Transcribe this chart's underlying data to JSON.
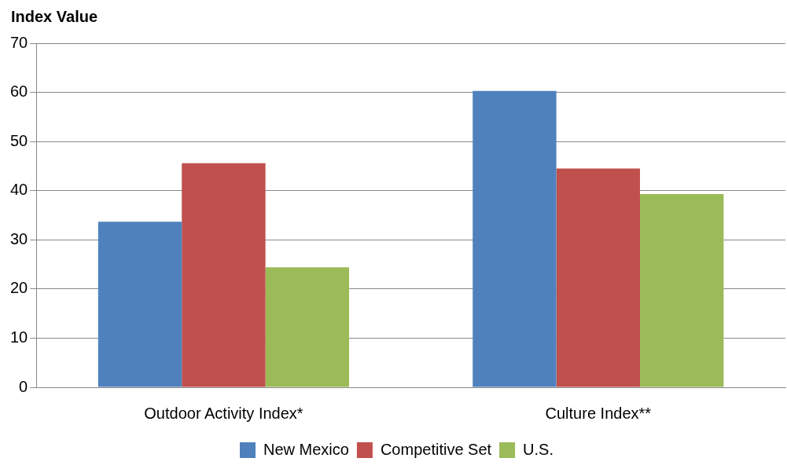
{
  "chart_data": {
    "type": "bar",
    "ylabel": "Index Value",
    "categories": [
      "Outdoor Activity Index*",
      "Culture Index**"
    ],
    "series": [
      {
        "name": "New Mexico",
        "color": "#4f81bd",
        "values": [
          33.7,
          60.3
        ]
      },
      {
        "name": "Competitive Set",
        "color": "#c0504d",
        "values": [
          45.6,
          44.5
        ]
      },
      {
        "name": "U.S.",
        "color": "#9bbb59",
        "values": [
          24.4,
          39.3
        ]
      }
    ],
    "ylim": [
      0,
      70
    ],
    "yticks": [
      0,
      10,
      20,
      30,
      40,
      50,
      60,
      70
    ],
    "grid": "y",
    "legend": "bottom"
  }
}
